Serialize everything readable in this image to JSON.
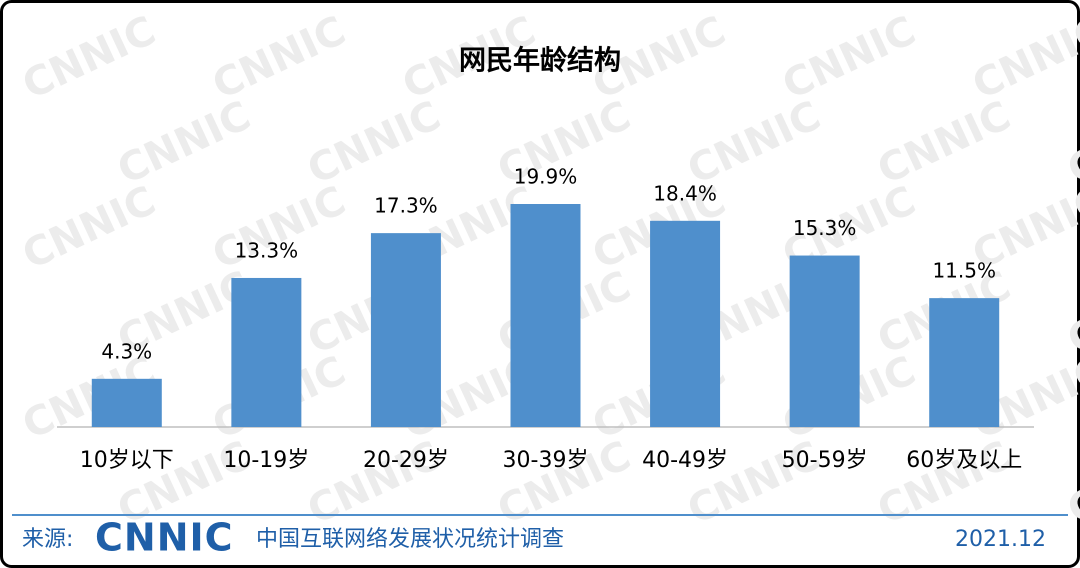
{
  "chart_data": {
    "type": "bar",
    "title": "网民年龄结构",
    "categories": [
      "10岁以下",
      "10-19岁",
      "20-29岁",
      "30-39岁",
      "40-49岁",
      "50-59岁",
      "60岁及以上"
    ],
    "values": [
      4.3,
      13.3,
      17.3,
      19.9,
      18.4,
      15.3,
      11.5
    ],
    "value_labels": [
      "4.3%",
      "13.3%",
      "17.3%",
      "19.9%",
      "18.4%",
      "15.3%",
      "11.5%"
    ],
    "color": "#4f8fcc"
  },
  "watermark": "CNNIC",
  "footer": {
    "source_label": "来源:",
    "logo": "CNNIC",
    "source": "中国互联网络发展状况统计调查",
    "date": "2021.12"
  }
}
